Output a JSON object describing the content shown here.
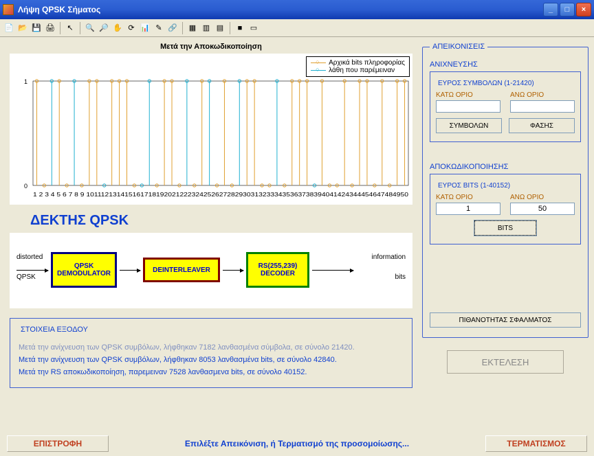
{
  "window": {
    "title": "Λήψη QPSK Σήματος"
  },
  "toolbar": {
    "icons": [
      "new",
      "open",
      "save",
      "print",
      "arrow",
      "sep",
      "zoom-in",
      "zoom-out",
      "pan",
      "rotate",
      "data-cursor",
      "brush",
      "link",
      "sep",
      "insert",
      "colorbar",
      "legend",
      "sep",
      "stop",
      "play"
    ]
  },
  "chart": {
    "title": "Μετά την Αποκωδικοποίηση",
    "legend": {
      "series1": {
        "label": "Αρχικά bits πληροφορίας",
        "color": "#e0a030"
      },
      "series2": {
        "label": "λάθη που παρέμειναν",
        "color": "#20b0d0"
      }
    },
    "ylim": [
      -0.05,
      1.05
    ],
    "yticks": [
      0,
      1
    ],
    "xlim": [
      1,
      50
    ],
    "xticks_label": "1 2 3 4 5 6 7 8 9 1011121314151617181920212223242526272829303132333435363738394041424344454647484950",
    "stems": {
      "color_info": "#e0a030",
      "color_error": "#20b0d0",
      "marker": "o",
      "values": [
        1,
        0,
        1,
        1,
        0,
        1,
        0,
        1,
        1,
        0,
        1,
        1,
        1,
        0,
        0,
        1,
        0,
        1,
        1,
        0,
        1,
        0,
        1,
        1,
        0,
        1,
        0,
        1,
        1,
        1,
        0,
        0,
        1,
        0,
        1,
        1,
        1,
        0,
        1,
        0,
        0,
        1,
        0,
        1,
        1,
        0,
        1,
        0,
        1,
        1
      ],
      "errors_idx": [
        3,
        6,
        10,
        15,
        16,
        21,
        24,
        28,
        33,
        38
      ]
    }
  },
  "receiver": {
    "heading": "ΔΕΚΤΗΣ QPSK",
    "input_label_top": "distorted",
    "input_label_bot": "QPSK",
    "output_label_top": "information",
    "output_label_bot": "bits",
    "block1": "QPSK\nDEMODULATOR",
    "block2": "DEINTERLEAVER",
    "block3": "RS(255,239)\nDECODER",
    "colors": {
      "block_bg": "#ffff00",
      "block_text": "#0000d0",
      "border1": "#000080",
      "border2": "#800000",
      "border3": "#008000"
    }
  },
  "panels": {
    "ap_title": "ΑΠΕΙΚΟΝΙΣΕΙΣ",
    "detect": {
      "label": "ΑΝΙΧΝΕΥΣΗΣ",
      "range_title": "ΕΥΡΟΣ ΣΥΜΒΟΛΩΝ (1-21420)",
      "kato": "ΚΑΤΩ ΟΡΙΟ",
      "ano": "ΑΝΩ ΟΡΙΟ",
      "kato_val": "",
      "ano_val": "",
      "btn_sym": "ΣΥΜΒΟΛΩΝ",
      "btn_phase": "ΦΑΣΗΣ"
    },
    "decode": {
      "label": "ΑΠΟΚΩΔΙΚΟΠΟΙΗΣΗΣ",
      "range_title": "ΕΥΡΟΣ BITS (1-40152)",
      "kato": "ΚΑΤΩ ΟΡΙΟ",
      "ano": "ΑΝΩ ΟΡΙΟ",
      "kato_val": "1",
      "ano_val": "50",
      "btn_bits": "BITS"
    },
    "btn_prob": "ΠΙΘΑΝΟΤΗΤΑΣ ΣΦΑΛΜΑΤΟΣ",
    "btn_exec": "ΕΚΤΕΛΕΣΗ"
  },
  "output": {
    "legend": "ΣΤΟΙΧΕΙΑ ΕΞΟΔΟΥ",
    "line1": "Μετά την ανίχνευση των QPSK συμβόλων, λήφθηκαν 7182 λανθασμένα σύμβολα, σε σύνολο 21420.",
    "line2": "Μετά την ανίχνευση των QPSK συμβόλων, λήφθηκαν 8053 λανθασμένα bits, σε σύνολο 42840.",
    "line3": "Μετά την RS αποκωδικοποίηση, παρεμειναν 7528 λανθασμενα bits, σε σύνολο 40152."
  },
  "bottom": {
    "btn_back": "ΕΠΙΣΤΡΟΦΗ",
    "msg": "Επιλέξτε Απεικόνιση, ή Τερματισμό της προσομοίωσης...",
    "btn_end": "ΤΕΡΜΑΤΙΣΜΟΣ"
  }
}
